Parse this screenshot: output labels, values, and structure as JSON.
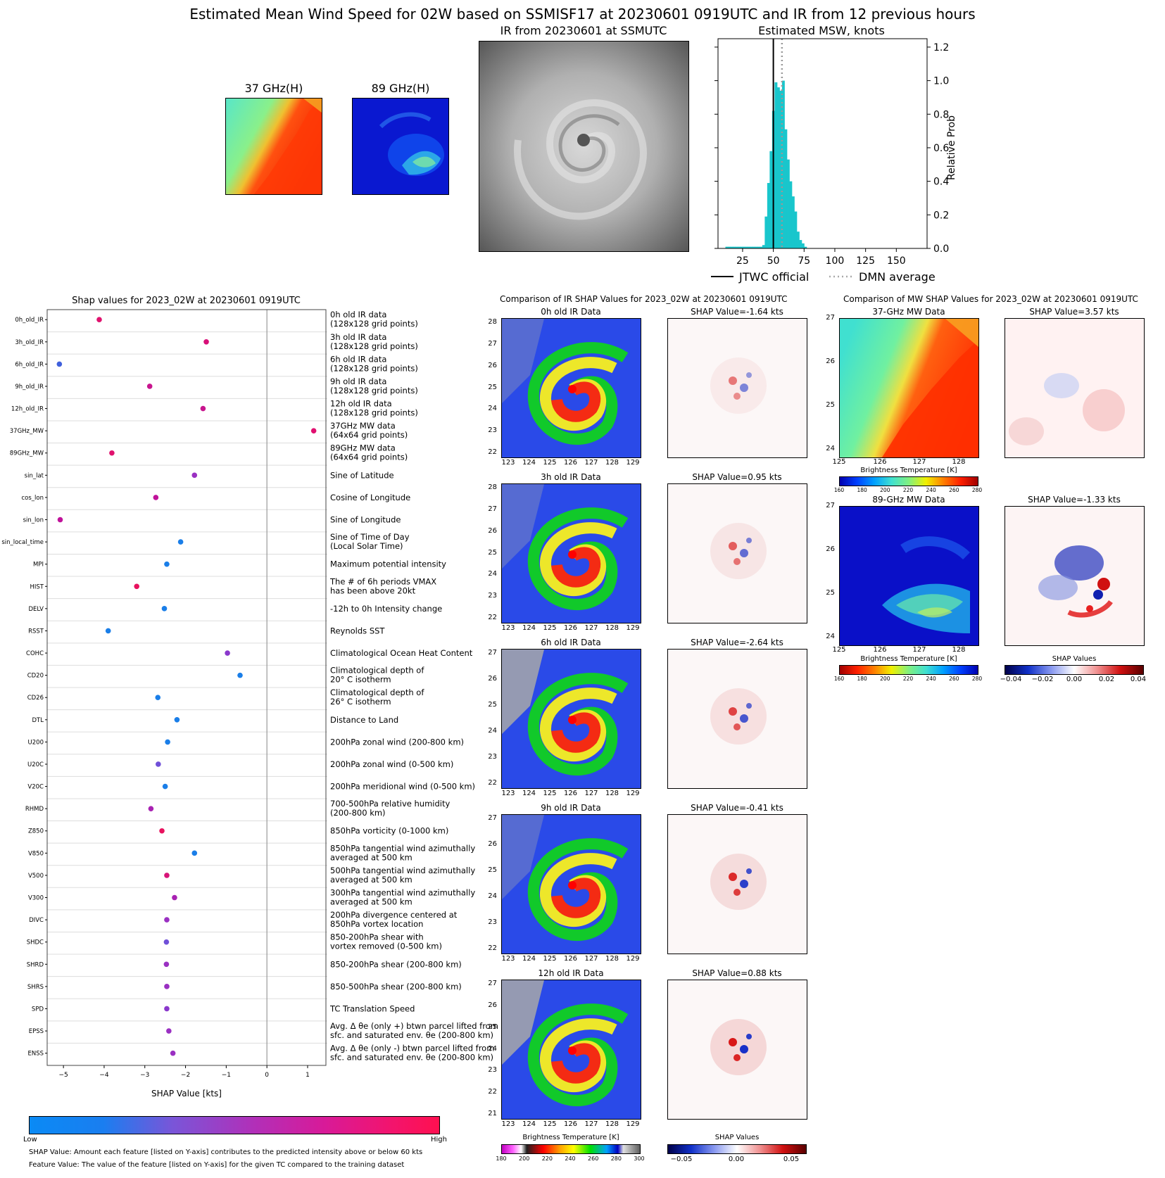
{
  "main_title": "Estimated Mean Wind Speed for 02W based on SSMISF17 at 20230601 0919UTC and IR from 12 previous hours",
  "top_panels": {
    "ghz37_title": "37 GHz(H)",
    "ghz89_title": "89 GHz(H)",
    "ir_title": "IR from 20230601 at  SSMUTC",
    "msw_title": "Estimated MSW, knots"
  },
  "chart_data": [
    {
      "type": "bar",
      "title": "Estimated MSW, knots",
      "ylabel": "Relative Prob",
      "xlim": [
        5,
        175
      ],
      "ylim": [
        0,
        1.25
      ],
      "xticks": [
        25,
        50,
        75,
        100,
        125,
        150
      ],
      "yticks": [
        "0.0",
        "0.2",
        "0.4",
        "0.6",
        "0.8",
        "1.0",
        "1.2"
      ],
      "bins": [
        {
          "x": 10,
          "h": 0.0
        },
        {
          "x": 12,
          "h": 0.01
        },
        {
          "x": 14,
          "h": 0.01
        },
        {
          "x": 16,
          "h": 0.01
        },
        {
          "x": 18,
          "h": 0.01
        },
        {
          "x": 20,
          "h": 0.01
        },
        {
          "x": 22,
          "h": 0.01
        },
        {
          "x": 24,
          "h": 0.01
        },
        {
          "x": 26,
          "h": 0.01
        },
        {
          "x": 28,
          "h": 0.01
        },
        {
          "x": 30,
          "h": 0.01
        },
        {
          "x": 32,
          "h": 0.01
        },
        {
          "x": 34,
          "h": 0.01
        },
        {
          "x": 36,
          "h": 0.01
        },
        {
          "x": 38,
          "h": 0.01
        },
        {
          "x": 40,
          "h": 0.01
        },
        {
          "x": 42,
          "h": 0.02
        },
        {
          "x": 44,
          "h": 0.19
        },
        {
          "x": 46,
          "h": 0.39
        },
        {
          "x": 48,
          "h": 0.58
        },
        {
          "x": 50,
          "h": 0.82
        },
        {
          "x": 52,
          "h": 0.99
        },
        {
          "x": 54,
          "h": 0.96
        },
        {
          "x": 56,
          "h": 0.94
        },
        {
          "x": 58,
          "h": 1.0
        },
        {
          "x": 60,
          "h": 0.71
        },
        {
          "x": 62,
          "h": 0.53
        },
        {
          "x": 64,
          "h": 0.4
        },
        {
          "x": 66,
          "h": 0.31
        },
        {
          "x": 68,
          "h": 0.22
        },
        {
          "x": 70,
          "h": 0.1
        },
        {
          "x": 72,
          "h": 0.05
        },
        {
          "x": 74,
          "h": 0.03
        },
        {
          "x": 76,
          "h": 0.01
        }
      ],
      "jtwc_official": 50,
      "dmn_average": 57,
      "legend": [
        "JTWC official",
        "DMN average"
      ],
      "legend_placement": "below"
    },
    {
      "type": "scatter",
      "title": "Shap values for 2023_02W at 20230601 0919UTC",
      "xlabel": "SHAP Value [kts]",
      "xlim": [
        -5.4,
        1.45
      ],
      "xticks": [
        -5,
        -4,
        -3,
        -2,
        -1,
        0,
        1
      ],
      "features": [
        {
          "name": "0h_old_IR",
          "desc": [
            "0h old IR data",
            "(128x128 grid points)"
          ],
          "x": -4.12,
          "color": "#e0126e"
        },
        {
          "name": "3h_old_IR",
          "desc": [
            "3h old IR data",
            "(128x128 grid points)"
          ],
          "x": -1.49,
          "color": "#d80f78"
        },
        {
          "name": "6h_old_IR",
          "desc": [
            "6h old IR data",
            "(128x128 grid points)"
          ],
          "x": -5.1,
          "color": "#4060dc"
        },
        {
          "name": "9h_old_IR",
          "desc": [
            "9h old IR data",
            "(128x128 grid points)"
          ],
          "x": -2.88,
          "color": "#c8158e"
        },
        {
          "name": "12h_old_IR",
          "desc": [
            "12h old IR data",
            "(128x128 grid points)"
          ],
          "x": -1.57,
          "color": "#c8158e"
        },
        {
          "name": "37GHz_MW",
          "desc": [
            "37GHz MW data",
            "(64x64 grid points)"
          ],
          "x": 1.15,
          "color": "#e01070"
        },
        {
          "name": "89GHz_MW",
          "desc": [
            "89GHz MW data",
            "(64x64 grid points)"
          ],
          "x": -3.81,
          "color": "#e0126e"
        },
        {
          "name": "sin_lat",
          "desc": [
            "Sine of Latitude"
          ],
          "x": -1.78,
          "color": "#9a30c2"
        },
        {
          "name": "cos_lon",
          "desc": [
            "Cosine of Longitude"
          ],
          "x": -2.73,
          "color": "#c0129a"
        },
        {
          "name": "sin_lon",
          "desc": [
            "Sine of Longitude"
          ],
          "x": -5.08,
          "color": "#c0129a"
        },
        {
          "name": "sin_local_time",
          "desc": [
            "Sine of Time of Day",
            "(Local Solar Time)"
          ],
          "x": -2.12,
          "color": "#1a7ee8"
        },
        {
          "name": "MPI",
          "desc": [
            "Maximum potential intensity"
          ],
          "x": -2.46,
          "color": "#1a7ee8"
        },
        {
          "name": "HIST",
          "desc": [
            "The # of 6h periods VMAX",
            "has been above 20kt"
          ],
          "x": -3.2,
          "color": "#e8125e"
        },
        {
          "name": "DELV",
          "desc": [
            "-12h to 0h Intensity change"
          ],
          "x": -2.52,
          "color": "#1a7ee8"
        },
        {
          "name": "RSST",
          "desc": [
            "Reynolds SST"
          ],
          "x": -3.9,
          "color": "#1a7ee8"
        },
        {
          "name": "COHC",
          "desc": [
            "Climatological Ocean Heat Content"
          ],
          "x": -0.97,
          "color": "#8a38cc"
        },
        {
          "name": "CD20",
          "desc": [
            "Climatological depth of",
            "20° C isotherm"
          ],
          "x": -0.66,
          "color": "#1a7ee8"
        },
        {
          "name": "CD26",
          "desc": [
            "Climatological depth of",
            "26° C isotherm"
          ],
          "x": -2.68,
          "color": "#1a7ee8"
        },
        {
          "name": "DTL",
          "desc": [
            "Distance to Land"
          ],
          "x": -2.21,
          "color": "#1a7ee8"
        },
        {
          "name": "U200",
          "desc": [
            "200hPa zonal wind (200-800 km)"
          ],
          "x": -2.44,
          "color": "#1a7ee8"
        },
        {
          "name": "U20C",
          "desc": [
            "200hPa zonal wind (0-500 km)"
          ],
          "x": -2.67,
          "color": "#7050d8"
        },
        {
          "name": "V20C",
          "desc": [
            "200hPa meridional wind (0-500 km)"
          ],
          "x": -2.5,
          "color": "#1a7ee8"
        },
        {
          "name": "RHMD",
          "desc": [
            "700-500hPa relative humidity",
            "(200-800 km)"
          ],
          "x": -2.85,
          "color": "#a822b2"
        },
        {
          "name": "Z850",
          "desc": [
            "850hPa vorticity (0-1000 km)"
          ],
          "x": -2.58,
          "color": "#e8125e"
        },
        {
          "name": "V850",
          "desc": [
            "850hPa tangential wind azimuthally",
            "averaged at 500 km"
          ],
          "x": -1.78,
          "color": "#1a7ee8"
        },
        {
          "name": "V500",
          "desc": [
            "500hPa tangential wind azimuthally",
            "averaged at 500 km"
          ],
          "x": -2.46,
          "color": "#d81478"
        },
        {
          "name": "V300",
          "desc": [
            "300hPa tangential wind azimuthally",
            "averaged at 500 km"
          ],
          "x": -2.27,
          "color": "#a822b2"
        },
        {
          "name": "DIVC",
          "desc": [
            "200hPa divergence centered at",
            "850hPa vortex location"
          ],
          "x": -2.46,
          "color": "#9a30c2"
        },
        {
          "name": "SHDC",
          "desc": [
            "850-200hPa shear with",
            "vortex removed (0-500 km)"
          ],
          "x": -2.47,
          "color": "#7050d8"
        },
        {
          "name": "SHRD",
          "desc": [
            "850-200hPa shear (200-800 km)"
          ],
          "x": -2.47,
          "color": "#9a30c2"
        },
        {
          "name": "SHRS",
          "desc": [
            "850-500hPa shear (200-800 km)"
          ],
          "x": -2.46,
          "color": "#9a30c2"
        },
        {
          "name": "SPD",
          "desc": [
            "TC Translation Speed"
          ],
          "x": -2.46,
          "color": "#8a38cc"
        },
        {
          "name": "EPSS",
          "desc": [
            "Avg. Δ θe (only +) btwn parcel lifted from",
            "sfc. and saturated env. θe (200-800 km)"
          ],
          "x": -2.41,
          "color": "#9a30c2"
        },
        {
          "name": "ENSS",
          "desc": [
            "Avg. Δ θe (only -) btwn parcel lifted from",
            "sfc. and saturated env. θe (200-800 km)"
          ],
          "x": -2.31,
          "color": "#9a30c2"
        }
      ]
    }
  ],
  "feature_colorbar": {
    "low": "Low",
    "high": "High"
  },
  "footnotes": [
    "SHAP Value: Amount each feature [listed on Y-axis] contributes to the predicted intensity above or below 60 kts",
    "Feature Value: The value of the feature [listed on Y-axis] for the given TC compared to the training dataset"
  ],
  "ir_comparison": {
    "title": "Comparison of IR SHAP Values for 2023_02W at 20230601 0919UTC",
    "rows": [
      {
        "data_title": "0h old IR Data",
        "shap_title": "SHAP Value=-1.64 kts",
        "yticks": [
          "28",
          "27",
          "26",
          "25",
          "24",
          "23",
          "22"
        ],
        "xticks": [
          "123",
          "124",
          "125",
          "126",
          "127",
          "128",
          "129"
        ]
      },
      {
        "data_title": "3h old IR Data",
        "shap_title": "SHAP Value=0.95 kts",
        "yticks": [
          "28",
          "27",
          "26",
          "25",
          "24",
          "23",
          "22"
        ],
        "xticks": [
          "123",
          "124",
          "125",
          "126",
          "127",
          "128",
          "129"
        ]
      },
      {
        "data_title": "6h old IR Data",
        "shap_title": "SHAP Value=-2.64 kts",
        "yticks": [
          "27",
          "26",
          "25",
          "24",
          "23",
          "22"
        ],
        "xticks": [
          "123",
          "124",
          "125",
          "126",
          "127",
          "128",
          "129"
        ]
      },
      {
        "data_title": "9h old IR Data",
        "shap_title": "SHAP Value=-0.41 kts",
        "yticks": [
          "27",
          "26",
          "25",
          "24",
          "23",
          "22"
        ],
        "xticks": [
          "123",
          "124",
          "125",
          "126",
          "127",
          "128",
          "129"
        ]
      },
      {
        "data_title": "12h old IR Data",
        "shap_title": "SHAP Value=0.88 kts",
        "yticks": [
          "27",
          "26",
          "25",
          "24",
          "23",
          "22",
          "21"
        ],
        "xticks": [
          "123",
          "124",
          "125",
          "126",
          "127",
          "128",
          "129"
        ]
      }
    ],
    "bt_colorbar_label": "Brightness Temperature [K]",
    "bt_ticks": [
      "180",
      "200",
      "220",
      "240",
      "260",
      "280",
      "300"
    ],
    "shap_colorbar_label": "SHAP Values",
    "shap_ticks": [
      "−0.05",
      "0.00",
      "0.05"
    ]
  },
  "mw_comparison": {
    "title": "Comparison of MW SHAP Values for 2023_02W at 20230601 0919UTC",
    "ghz37_title": "37-GHz MW Data",
    "ghz37_shap": "SHAP Value=3.57 kts",
    "ghz89_title": "89-GHz MW Data",
    "ghz89_shap": "SHAP Value=-1.33 kts",
    "yticks_37": [
      "27",
      "26",
      "25",
      "24"
    ],
    "yticks_89": [
      "27",
      "26",
      "25",
      "24"
    ],
    "xticks": [
      "125",
      "126",
      "127",
      "128"
    ],
    "bt_colorbar_label": "Brightness Temperature [K]",
    "bt_ticks": [
      "160",
      "180",
      "200",
      "220",
      "240",
      "260",
      "280"
    ],
    "shap_colorbar_label": "SHAP Values",
    "shap_ticks": [
      "−0.04",
      "−0.02",
      "0.00",
      "0.02",
      "0.04"
    ]
  }
}
